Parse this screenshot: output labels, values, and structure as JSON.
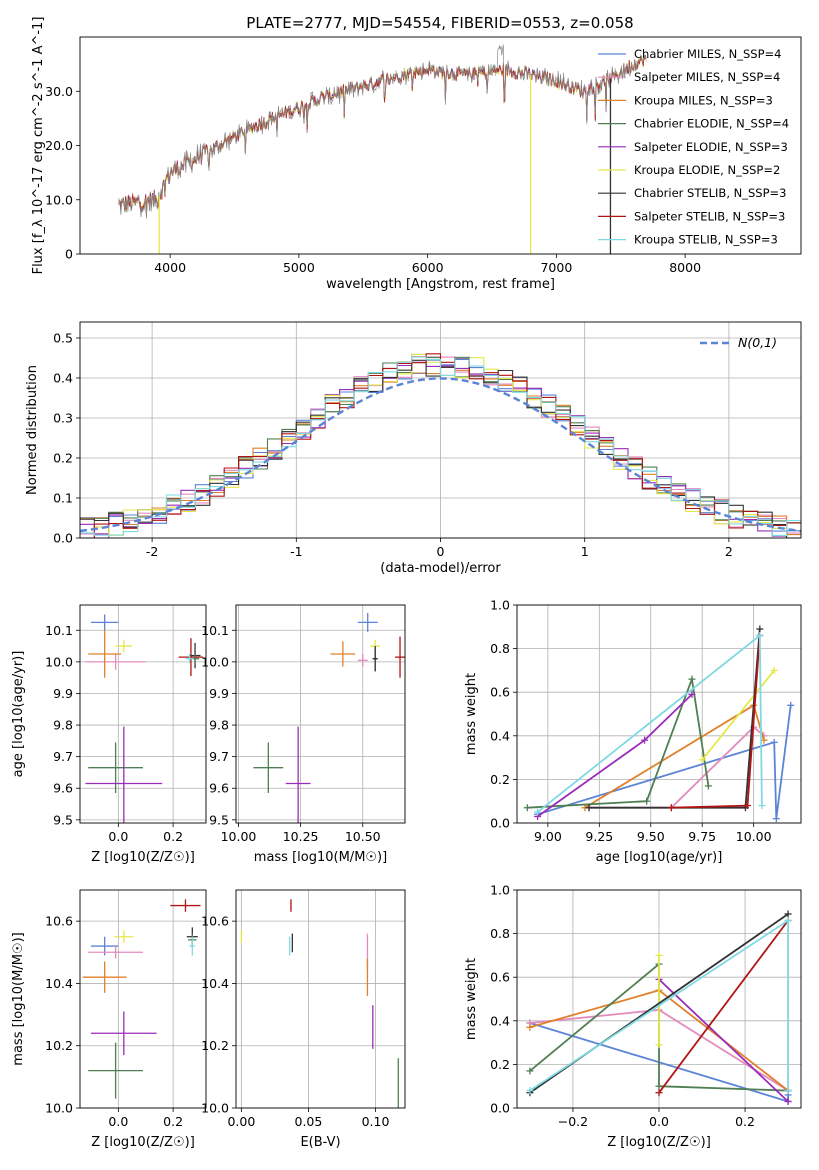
{
  "figure_title": "PLATE=2777, MJD=54554, FIBERID=0553, z=0.058",
  "colors": {
    "chabrier_miles": "#5b84d6",
    "salpeter_miles": "#e38bbd",
    "kroupa_miles": "#e0812b",
    "chabrier_elodie": "#4f7f52",
    "salpeter_elodie": "#9b2cb9",
    "kroupa_elodie": "#e6e84a",
    "chabrier_stelib": "#333333",
    "salpeter_stelib": "#b01515",
    "kroupa_stelib": "#7fd9e3",
    "data_spectrum": "#888888",
    "normal_curve": "#5b84d6",
    "grid": "#b0b0b0"
  },
  "chart_data": [
    {
      "id": "spectrum",
      "type": "line",
      "title": "PLATE=2777, MJD=54554, FIBERID=0553, z=0.058",
      "xlabel": "wavelength [Angstrom, rest frame]",
      "ylabel": "Flux [f_λ 10^-17 erg cm^-2 s^-1 A^-1]",
      "xlim": [
        3300,
        8900
      ],
      "ylim": [
        0,
        40
      ],
      "xticks": [
        4000,
        5000,
        6000,
        7000,
        8000
      ],
      "yticks": [
        0,
        10,
        20,
        30
      ],
      "grid": false,
      "legend_position": "top-right",
      "legend": [
        "Chabrier MILES, N_SSP=4",
        "Salpeter MILES, N_SSP=4",
        "Kroupa MILES, N_SSP=3",
        "Chabrier ELODIE, N_SSP=4",
        "Salpeter ELODIE, N_SSP=3",
        "Kroupa ELODIE, N_SSP=2",
        "Chabrier STELIB, N_SSP=3",
        "Salpeter STELIB, N_SSP=3",
        "Kroupa STELIB, N_SSP=3"
      ],
      "continuum_x": [
        3600,
        3900,
        4000,
        4300,
        4600,
        5000,
        5200,
        5500,
        5800,
        6000,
        6300,
        6600,
        7000,
        7200,
        7400,
        7600,
        7700
      ],
      "continuum_y": [
        9,
        10,
        15,
        19,
        23,
        27,
        29,
        31,
        33,
        34,
        33,
        34,
        32,
        30,
        32,
        35,
        36
      ],
      "spikes": [
        {
          "series": 6,
          "x": 7420,
          "y": 0
        },
        {
          "series": 5,
          "x": 6800,
          "y": 0
        },
        {
          "series": 5,
          "x": 3915,
          "y": 0
        }
      ]
    },
    {
      "id": "residuals",
      "type": "histogram",
      "xlabel": "(data-model)/error",
      "ylabel": "Normed distribution",
      "xlim": [
        -2.5,
        2.5
      ],
      "ylim": [
        0,
        0.54
      ],
      "xticks": [
        -2,
        -1,
        0,
        1,
        2
      ],
      "yticks": [
        0.0,
        0.1,
        0.2,
        0.3,
        0.4,
        0.5
      ],
      "grid": true,
      "legend": [
        "N(0,1)"
      ],
      "legend_position": "top-right",
      "bin_width": 0.1,
      "bin_start": -2.5,
      "gaussian": {
        "mean": 0,
        "sigma": 1
      }
    },
    {
      "id": "age_vs_z",
      "type": "errorbar",
      "xlabel": "Z [log10(Z/Z☉)]",
      "ylabel": "age  [log10(age/yr)]",
      "xlim": [
        -0.14,
        0.32
      ],
      "ylim": [
        9.49,
        10.18
      ],
      "xticks": [
        -0.0,
        0.2
      ],
      "xtick_labels": [
        "0.0",
        "0.2"
      ],
      "yticks": [
        9.5,
        9.6,
        9.7,
        9.8,
        9.9,
        10.0,
        10.1
      ],
      "grid": true,
      "points": [
        {
          "series": 0,
          "x": -0.05,
          "y": 10.125,
          "xerr": 0.05,
          "yerr": 0.025
        },
        {
          "series": 1,
          "x": -0.01,
          "y": 10.0,
          "xerr": 0.11,
          "yerr": 0.025
        },
        {
          "series": 2,
          "x": -0.05,
          "y": 10.025,
          "xerr": 0.06,
          "yerr": 0.075
        },
        {
          "series": 5,
          "x": 0.02,
          "y": 10.05,
          "xerr": 0.03,
          "yerr": 0.02
        },
        {
          "series": 7,
          "x": 0.265,
          "y": 10.015,
          "xerr": 0.045,
          "yerr": 0.06
        },
        {
          "series": 6,
          "x": 0.28,
          "y": 10.02,
          "xerr": 0.02,
          "yerr": 0.04
        },
        {
          "series": 3,
          "x": 0.28,
          "y": 10.01,
          "xerr": 0.015,
          "yerr": 0.015
        },
        {
          "series": 8,
          "x": 0.26,
          "y": 10.01,
          "xerr": 0.015,
          "yerr": 0.015
        },
        {
          "series": 3,
          "x": -0.01,
          "y": 9.665,
          "xerr": 0.1,
          "yerr": 0.08
        },
        {
          "series": 4,
          "x": 0.02,
          "y": 9.615,
          "xerr": 0.14,
          "yerr": 0.18
        }
      ]
    },
    {
      "id": "age_vs_mass",
      "type": "errorbar",
      "xlabel": "mass [log10(M/M☉)]",
      "ylabel": "",
      "xlim": [
        9.99,
        10.67
      ],
      "ylim": [
        9.49,
        10.18
      ],
      "xticks": [
        10.0,
        10.25,
        10.5
      ],
      "xtick_labels": [
        "10.00",
        "10.25",
        "10.50"
      ],
      "yticks": [
        9.5,
        9.6,
        9.7,
        9.8,
        9.9,
        10.0,
        10.1
      ],
      "grid": true,
      "points": [
        {
          "series": 0,
          "x": 10.52,
          "y": 10.125,
          "xerr": 0.04,
          "yerr": 0.03
        },
        {
          "series": 2,
          "x": 10.42,
          "y": 10.025,
          "xerr": 0.05,
          "yerr": 0.04
        },
        {
          "series": 1,
          "x": 10.5,
          "y": 10.005,
          "xerr": 0.02,
          "yerr": 0.02
        },
        {
          "series": 5,
          "x": 10.55,
          "y": 10.05,
          "xerr": 0.02,
          "yerr": 0.02
        },
        {
          "series": 3,
          "x": 10.55,
          "y": 10.01,
          "xerr": 0.01,
          "yerr": 0.04
        },
        {
          "series": 6,
          "x": 10.55,
          "y": 10.01,
          "xerr": 0.01,
          "yerr": 0.04
        },
        {
          "series": 7,
          "x": 10.65,
          "y": 10.015,
          "xerr": 0.02,
          "yerr": 0.065
        },
        {
          "series": 3,
          "x": 10.12,
          "y": 9.665,
          "xerr": 0.06,
          "yerr": 0.08
        },
        {
          "series": 4,
          "x": 10.24,
          "y": 9.615,
          "xerr": 0.05,
          "yerr": 0.18
        }
      ]
    },
    {
      "id": "weight_vs_age",
      "type": "line",
      "xlabel": "age  [log10(age/yr)]",
      "ylabel": "mass weight",
      "xlim": [
        8.85,
        10.23
      ],
      "ylim": [
        0,
        1
      ],
      "xticks": [
        9.0,
        9.25,
        9.5,
        9.75,
        10.0
      ],
      "xtick_labels": [
        "9.00",
        "9.25",
        "9.50",
        "9.75",
        "10.00"
      ],
      "yticks": [
        0,
        0.2,
        0.4,
        0.6,
        0.8,
        1.0
      ],
      "grid": true,
      "series": [
        {
          "series": 0,
          "x": [
            8.95,
            10.1,
            10.11,
            10.18
          ],
          "y": [
            0.04,
            0.37,
            0.02,
            0.54
          ]
        },
        {
          "series": 1,
          "x": [
            9.2,
            9.6,
            10.0,
            10.05
          ],
          "y": [
            0.07,
            0.07,
            0.44,
            0.4
          ]
        },
        {
          "series": 2,
          "x": [
            9.18,
            10.0,
            10.05
          ],
          "y": [
            0.07,
            0.54,
            0.38
          ]
        },
        {
          "series": 3,
          "x": [
            8.9,
            9.48,
            9.7,
            9.78
          ],
          "y": [
            0.07,
            0.1,
            0.66,
            0.17
          ]
        },
        {
          "series": 4,
          "x": [
            8.95,
            9.47,
            9.7
          ],
          "y": [
            0.03,
            0.38,
            0.59
          ]
        },
        {
          "series": 5,
          "x": [
            9.75,
            10.1
          ],
          "y": [
            0.29,
            0.7
          ]
        },
        {
          "series": 6,
          "x": [
            9.2,
            9.96,
            10.03
          ],
          "y": [
            0.07,
            0.07,
            0.89
          ]
        },
        {
          "series": 7,
          "x": [
            9.6,
            9.97,
            10.03
          ],
          "y": [
            0.07,
            0.08,
            0.86
          ]
        },
        {
          "series": 8,
          "x": [
            8.95,
            10.03,
            10.04
          ],
          "y": [
            0.05,
            0.86,
            0.08
          ]
        }
      ]
    },
    {
      "id": "mass_vs_z",
      "type": "errorbar",
      "xlabel": "Z [log10(Z/Z☉)]",
      "ylabel": "mass [log10(M/M☉)]",
      "xlim": [
        -0.14,
        0.32
      ],
      "ylim": [
        10.0,
        10.7
      ],
      "xticks": [
        0.0,
        0.2
      ],
      "xtick_labels": [
        "0.0",
        "0.2"
      ],
      "yticks": [
        10.0,
        10.2,
        10.4,
        10.6
      ],
      "grid": true,
      "points": [
        {
          "series": 0,
          "x": -0.05,
          "y": 10.52,
          "xerr": 0.05,
          "yerr": 0.03
        },
        {
          "series": 1,
          "x": -0.01,
          "y": 10.5,
          "xerr": 0.1,
          "yerr": 0.02
        },
        {
          "series": 5,
          "x": 0.02,
          "y": 10.55,
          "xerr": 0.035,
          "yerr": 0.02
        },
        {
          "series": 2,
          "x": -0.05,
          "y": 10.42,
          "xerr": 0.08,
          "yerr": 0.05
        },
        {
          "series": 7,
          "x": 0.245,
          "y": 10.65,
          "xerr": 0.055,
          "yerr": 0.02
        },
        {
          "series": 6,
          "x": 0.27,
          "y": 10.55,
          "xerr": 0.02,
          "yerr": 0.03
        },
        {
          "series": 3,
          "x": 0.27,
          "y": 10.54,
          "xerr": 0.015,
          "yerr": 0.02
        },
        {
          "series": 8,
          "x": 0.27,
          "y": 10.52,
          "xerr": 0.01,
          "yerr": 0.03
        },
        {
          "series": 4,
          "x": 0.02,
          "y": 10.24,
          "xerr": 0.12,
          "yerr": 0.07
        },
        {
          "series": 3,
          "x": -0.01,
          "y": 10.12,
          "xerr": 0.1,
          "yerr": 0.09
        }
      ]
    },
    {
      "id": "mass_vs_ebv",
      "type": "errorbar",
      "xlabel": "E(B-V)",
      "ylabel": "",
      "xlim": [
        -0.004,
        0.122
      ],
      "ylim": [
        10.0,
        10.7
      ],
      "xticks": [
        0.0,
        0.05,
        0.1
      ],
      "xtick_labels": [
        "0.00",
        "0.05",
        "0.10"
      ],
      "yticks": [
        10.0,
        10.2,
        10.4,
        10.6
      ],
      "grid": true,
      "points": [
        {
          "series": 5,
          "x": 0.0,
          "y": 10.55,
          "xerr": 0.0,
          "yerr": 0.02
        },
        {
          "series": 7,
          "x": 0.037,
          "y": 10.65,
          "xerr": 0.0,
          "yerr": 0.02
        },
        {
          "series": 8,
          "x": 0.036,
          "y": 10.52,
          "xerr": 0.0,
          "yerr": 0.03
        },
        {
          "series": 6,
          "x": 0.038,
          "y": 10.53,
          "xerr": 0.0,
          "yerr": 0.03
        },
        {
          "series": 1,
          "x": 0.094,
          "y": 10.5,
          "xerr": 0.0,
          "yerr": 0.06
        },
        {
          "series": 2,
          "x": 0.094,
          "y": 10.42,
          "xerr": 0.0,
          "yerr": 0.06
        },
        {
          "series": 4,
          "x": 0.098,
          "y": 10.26,
          "xerr": 0.0,
          "yerr": 0.07
        },
        {
          "series": 3,
          "x": 0.117,
          "y": 10.06,
          "xerr": 0.0,
          "yerr": 0.1
        }
      ]
    },
    {
      "id": "weight_vs_z",
      "type": "line",
      "xlabel": "Z [log10(Z/Z☉)]",
      "ylabel": "mass weight",
      "xlim": [
        -0.33,
        0.33
      ],
      "ylim": [
        0,
        1
      ],
      "xticks": [
        -0.2,
        0.0,
        0.2
      ],
      "xtick_labels": [
        "−0.2",
        "0.0",
        "0.2"
      ],
      "yticks": [
        0,
        0.2,
        0.4,
        0.6,
        0.8,
        1.0
      ],
      "grid": true,
      "series": [
        {
          "series": 0,
          "x": [
            -0.3,
            0.3,
            0.3
          ],
          "y": [
            0.39,
            0.03,
            0.06
          ]
        },
        {
          "series": 1,
          "x": [
            -0.3,
            0.0,
            0.3
          ],
          "y": [
            0.39,
            0.45,
            0.08
          ]
        },
        {
          "series": 2,
          "x": [
            -0.3,
            0.0,
            0.3
          ],
          "y": [
            0.37,
            0.54,
            0.08
          ]
        },
        {
          "series": 3,
          "x": [
            -0.3,
            0.0,
            0.0,
            0.3
          ],
          "y": [
            0.17,
            0.66,
            0.1,
            0.08
          ]
        },
        {
          "series": 4,
          "x": [
            0.0,
            0.3
          ],
          "y": [
            0.59,
            0.03
          ]
        },
        {
          "series": 5,
          "x": [
            0.0,
            0.0
          ],
          "y": [
            0.29,
            0.7
          ]
        },
        {
          "series": 6,
          "x": [
            -0.3,
            0.3
          ],
          "y": [
            0.07,
            0.89
          ]
        },
        {
          "series": 7,
          "x": [
            0.0,
            0.3
          ],
          "y": [
            0.07,
            0.86
          ]
        },
        {
          "series": 8,
          "x": [
            -0.3,
            0.3,
            0.3
          ],
          "y": [
            0.08,
            0.86,
            0.08
          ]
        }
      ]
    }
  ]
}
